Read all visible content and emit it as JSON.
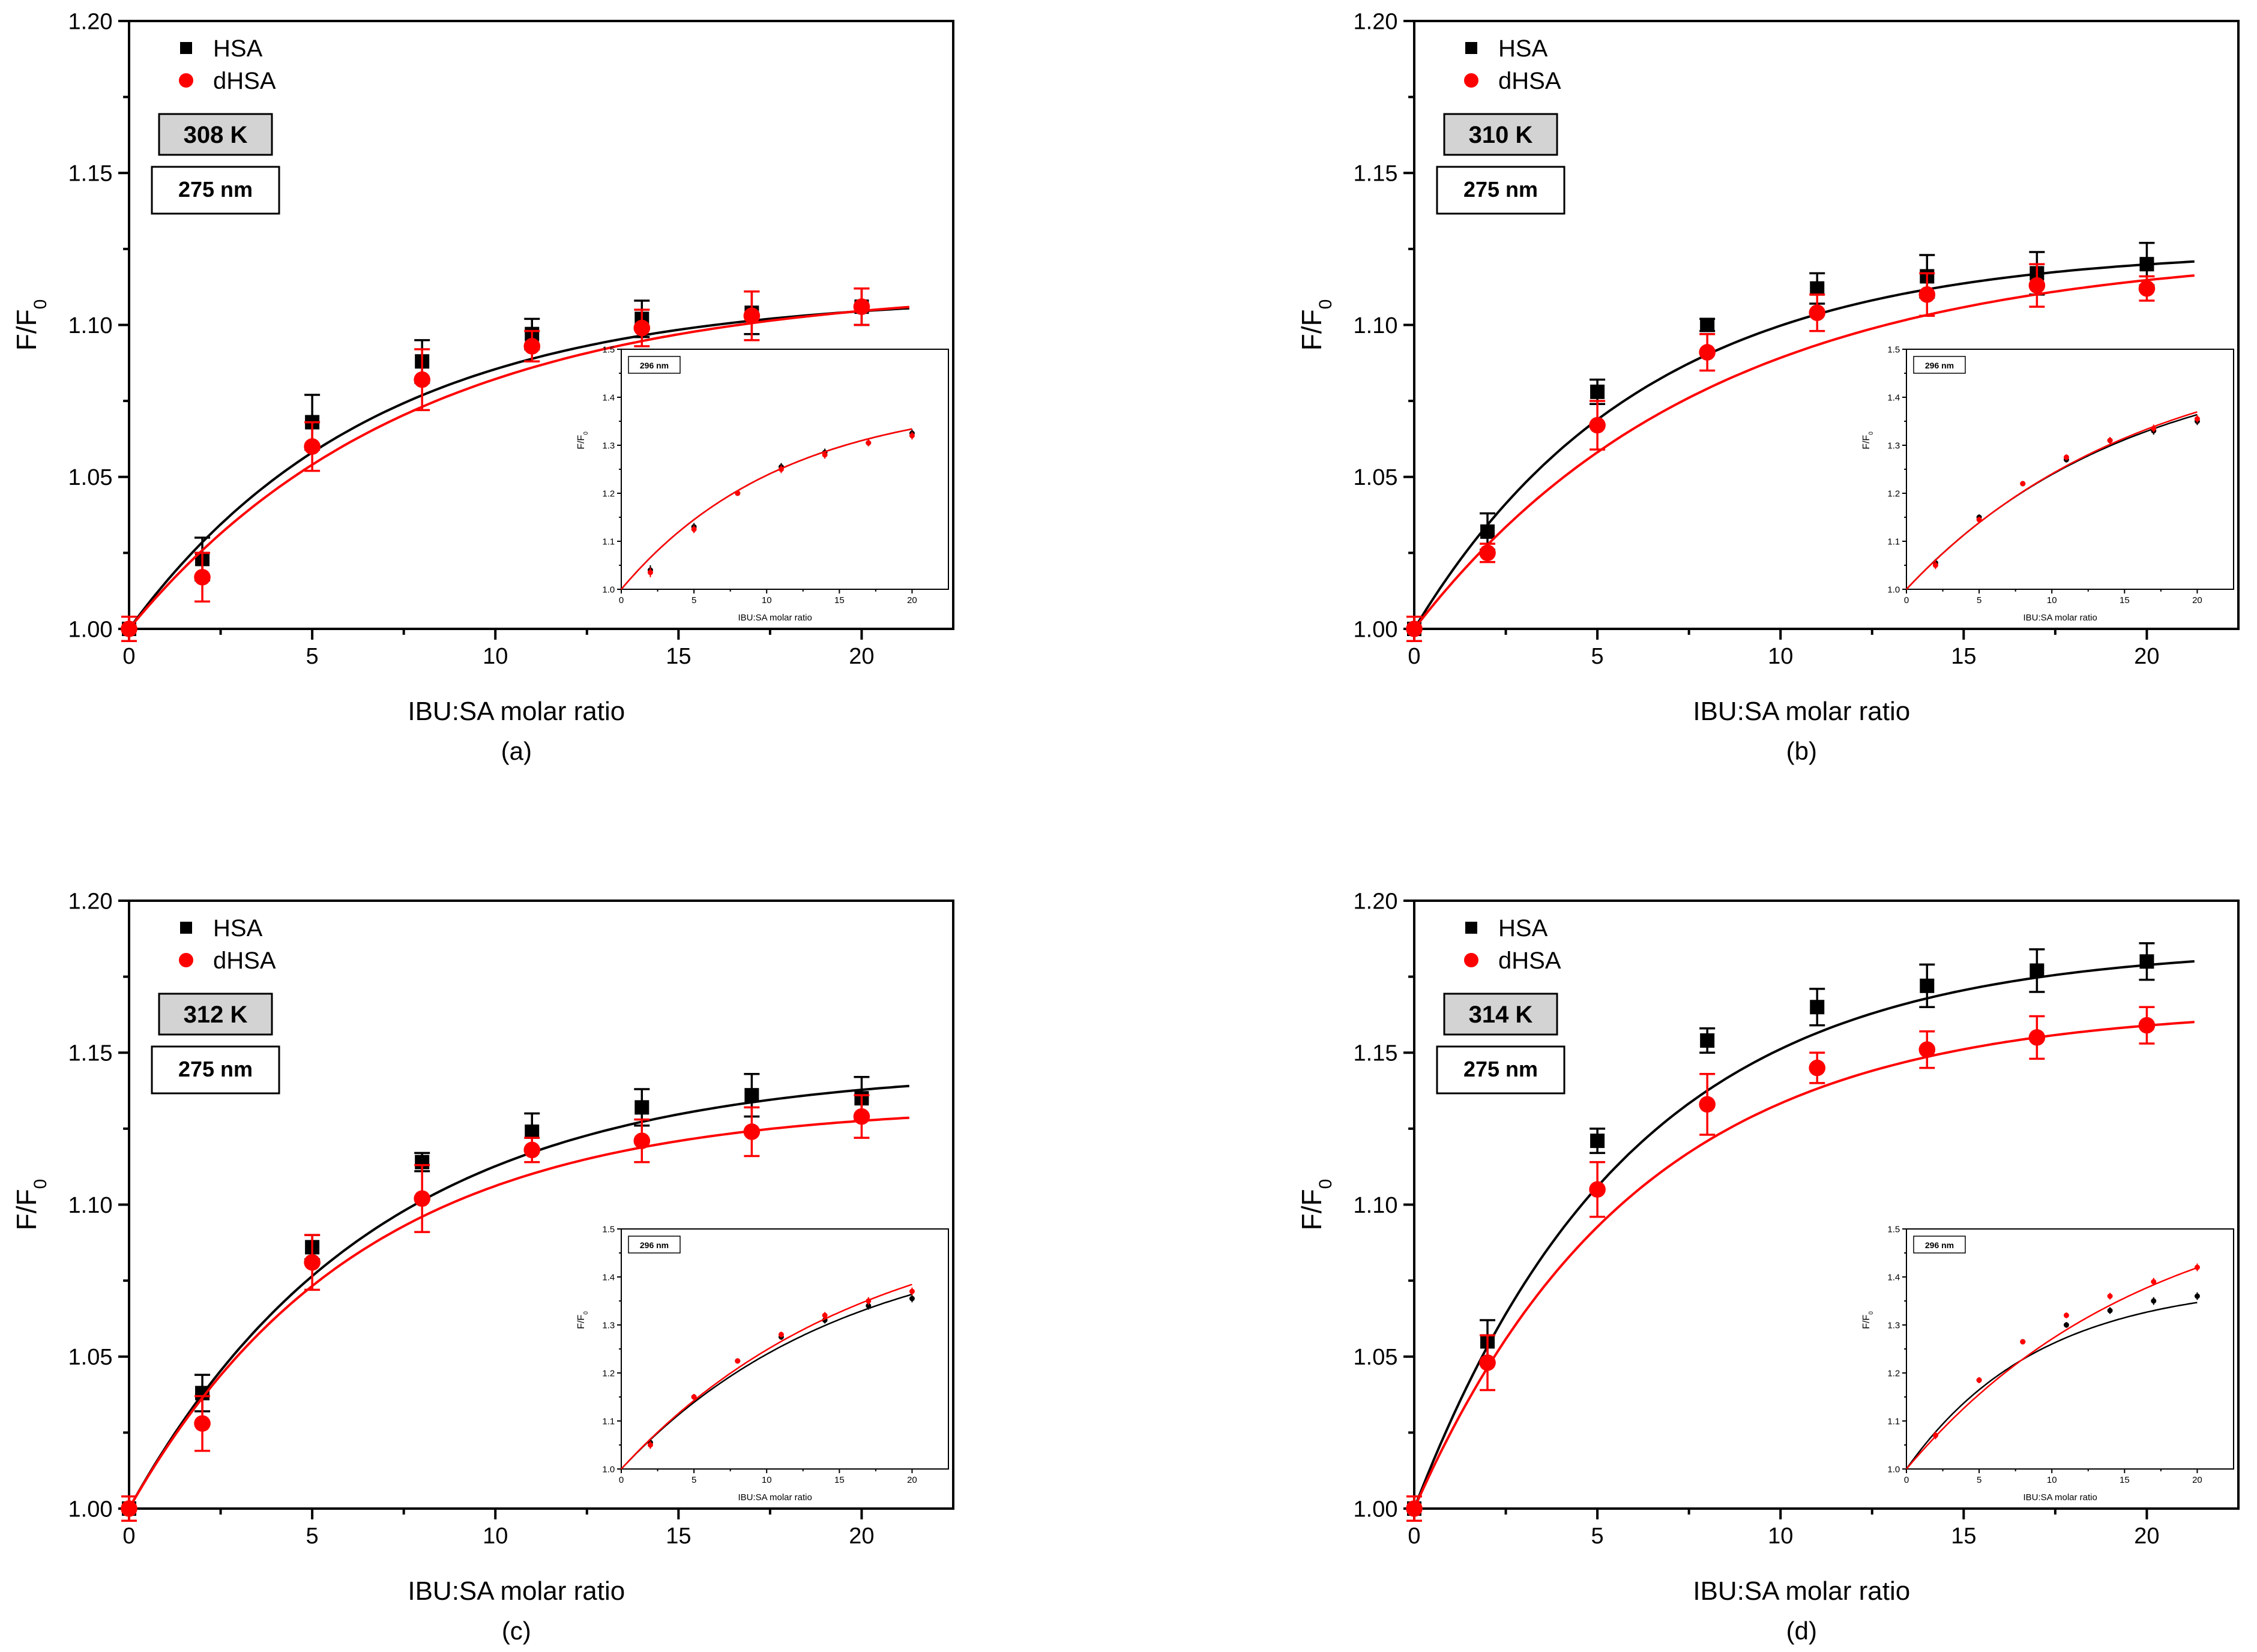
{
  "figure": {
    "panels": [
      {
        "label": "(a)",
        "temperature": "308 K",
        "wavelength": "275 nm",
        "inset_wavelength": "296 nm"
      },
      {
        "label": "(b)",
        "temperature": "310 K",
        "wavelength": "275 nm",
        "inset_wavelength": "296 nm"
      },
      {
        "label": "(c)",
        "temperature": "312 K",
        "wavelength": "275 nm",
        "inset_wavelength": "296 nm"
      },
      {
        "label": "(d)",
        "temperature": "314 K",
        "wavelength": "275 nm",
        "inset_wavelength": "296 nm"
      }
    ]
  },
  "chart_data": [
    {
      "type": "scatter",
      "panel": "(a)",
      "xlabel": "IBU:SA molar ratio",
      "ylabel": "F/F0",
      "xlim": [
        0,
        22.5
      ],
      "ylim": [
        1.0,
        1.2
      ],
      "xticks": [
        0,
        5,
        10,
        15,
        20
      ],
      "yticks": [
        1.0,
        1.05,
        1.1,
        1.15,
        1.2
      ],
      "xtick_labels": [
        "0",
        "5",
        "10",
        "15",
        "20"
      ],
      "ytick_labels": [
        "1.00",
        "1.05",
        "1.10",
        "1.15",
        "1.20"
      ],
      "legend": [
        "HSA",
        "dHSA"
      ],
      "legend_position": "top-left",
      "series": [
        {
          "name": "HSA",
          "color": "#000000",
          "marker": "square",
          "x": [
            0,
            2,
            5,
            8,
            11,
            14,
            17,
            20
          ],
          "y": [
            1.0,
            1.023,
            1.068,
            1.088,
            1.097,
            1.102,
            1.104,
            1.106
          ],
          "err": [
            0.004,
            0.007,
            0.009,
            0.007,
            0.005,
            0.006,
            0.007,
            0.006
          ],
          "fit": {
            "a": 0.11,
            "k": 0.15
          }
        },
        {
          "name": "dHSA",
          "color": "#ff0000",
          "marker": "circle",
          "x": [
            0,
            2,
            5,
            8,
            11,
            14,
            17,
            20
          ],
          "y": [
            1.0,
            1.017,
            1.06,
            1.082,
            1.093,
            1.099,
            1.103,
            1.106
          ],
          "err": [
            0.004,
            0.008,
            0.008,
            0.01,
            0.005,
            0.006,
            0.008,
            0.006
          ],
          "fit": {
            "a": 0.113,
            "k": 0.13
          }
        }
      ],
      "inset": {
        "xlabel": "IBU:SA molar ratio",
        "ylabel": "F/F0",
        "xlim": [
          0,
          22.5
        ],
        "ylim": [
          1.0,
          1.5
        ],
        "xticks": [
          0,
          5,
          10,
          15,
          20
        ],
        "yticks": [
          1.0,
          1.1,
          1.2,
          1.3,
          1.4,
          1.5
        ],
        "xtick_labels": [
          "0",
          "5",
          "10",
          "15",
          "20"
        ],
        "ytick_labels": [
          "1.0",
          "1.1",
          "1.2",
          "1.3",
          "1.4",
          "1.5"
        ],
        "series": [
          {
            "name": "HSA",
            "color": "#000000",
            "x": [
              2,
              5,
              8,
              11,
              14,
              17,
              20
            ],
            "y": [
              1.04,
              1.13,
              1.2,
              1.255,
              1.285,
              1.305,
              1.325
            ],
            "err": [
              0.01,
              0.008,
              0.005,
              0.008,
              0.008,
              0.007,
              0.008
            ],
            "fit": {
              "a": 0.4,
              "k": 0.09
            }
          },
          {
            "name": "dHSA",
            "color": "#ff0000",
            "x": [
              2,
              5,
              8,
              11,
              14,
              17,
              20
            ],
            "y": [
              1.035,
              1.125,
              1.2,
              1.25,
              1.28,
              1.305,
              1.32
            ],
            "err": [
              0.01,
              0.008,
              0.005,
              0.008,
              0.008,
              0.007,
              0.008
            ],
            "fit": {
              "a": 0.4,
              "k": 0.09
            }
          }
        ]
      }
    },
    {
      "type": "scatter",
      "panel": "(b)",
      "xlabel": "IBU:SA molar ratio",
      "ylabel": "F/F0",
      "xlim": [
        0,
        22.5
      ],
      "ylim": [
        1.0,
        1.2
      ],
      "xticks": [
        0,
        5,
        10,
        15,
        20
      ],
      "yticks": [
        1.0,
        1.05,
        1.1,
        1.15,
        1.2
      ],
      "xtick_labels": [
        "0",
        "5",
        "10",
        "15",
        "20"
      ],
      "ytick_labels": [
        "1.00",
        "1.05",
        "1.10",
        "1.15",
        "1.20"
      ],
      "legend": [
        "HSA",
        "dHSA"
      ],
      "legend_position": "top-left",
      "series": [
        {
          "name": "HSA",
          "color": "#000000",
          "marker": "square",
          "x": [
            0,
            2,
            5,
            8,
            11,
            14,
            17,
            20
          ],
          "y": [
            1.0,
            1.032,
            1.078,
            1.1,
            1.112,
            1.116,
            1.117,
            1.12
          ],
          "err": [
            0.004,
            0.006,
            0.004,
            0.002,
            0.005,
            0.007,
            0.007,
            0.007
          ],
          "fit": {
            "a": 0.125,
            "k": 0.16
          }
        },
        {
          "name": "dHSA",
          "color": "#ff0000",
          "marker": "circle",
          "x": [
            0,
            2,
            5,
            8,
            11,
            14,
            17,
            20
          ],
          "y": [
            1.0,
            1.025,
            1.067,
            1.091,
            1.104,
            1.11,
            1.113,
            1.112
          ],
          "err": [
            0.004,
            0.003,
            0.008,
            0.006,
            0.006,
            0.007,
            0.007,
            0.004
          ],
          "fit": {
            "a": 0.125,
            "k": 0.125
          }
        }
      ],
      "inset": {
        "xlabel": "IBU:SA molar ratio",
        "ylabel": "F/F0",
        "xlim": [
          0,
          22.5
        ],
        "ylim": [
          1.0,
          1.5
        ],
        "xticks": [
          0,
          5,
          10,
          15,
          20
        ],
        "yticks": [
          1.0,
          1.1,
          1.2,
          1.3,
          1.4,
          1.5
        ],
        "xtick_labels": [
          "0",
          "5",
          "10",
          "15",
          "20"
        ],
        "ytick_labels": [
          "1.0",
          "1.1",
          "1.2",
          "1.3",
          "1.4",
          "1.5"
        ],
        "series": [
          {
            "name": "HSA",
            "color": "#000000",
            "x": [
              2,
              5,
              8,
              11,
              14,
              17,
              20
            ],
            "y": [
              1.055,
              1.15,
              1.22,
              1.27,
              1.31,
              1.33,
              1.35
            ],
            "err": [
              0.008,
              0.006,
              0.005,
              0.006,
              0.007,
              0.008,
              0.008
            ],
            "fit": {
              "a": 0.5,
              "k": 0.065
            }
          },
          {
            "name": "dHSA",
            "color": "#ff0000",
            "x": [
              2,
              5,
              8,
              11,
              14,
              17,
              20
            ],
            "y": [
              1.05,
              1.145,
              1.22,
              1.275,
              1.31,
              1.335,
              1.355
            ],
            "err": [
              0.008,
              0.006,
              0.005,
              0.006,
              0.007,
              0.008,
              0.008
            ],
            "fit": {
              "a": 0.52,
              "k": 0.062
            }
          }
        ]
      }
    },
    {
      "type": "scatter",
      "panel": "(c)",
      "xlabel": "IBU:SA molar ratio",
      "ylabel": "F/F0",
      "xlim": [
        0,
        22.5
      ],
      "ylim": [
        1.0,
        1.2
      ],
      "xticks": [
        0,
        5,
        10,
        15,
        20
      ],
      "yticks": [
        1.0,
        1.05,
        1.1,
        1.15,
        1.2
      ],
      "xtick_labels": [
        "0",
        "5",
        "10",
        "15",
        "20"
      ],
      "ytick_labels": [
        "1.00",
        "1.05",
        "1.10",
        "1.15",
        "1.20"
      ],
      "legend": [
        "HSA",
        "dHSA"
      ],
      "legend_position": "top-left",
      "series": [
        {
          "name": "HSA",
          "color": "#000000",
          "marker": "square",
          "x": [
            0,
            2,
            5,
            8,
            11,
            14,
            17,
            20
          ],
          "y": [
            1.0,
            1.038,
            1.086,
            1.114,
            1.124,
            1.132,
            1.136,
            1.135
          ],
          "err": [
            0.004,
            0.006,
            0.004,
            0.003,
            0.006,
            0.006,
            0.007,
            0.007
          ],
          "fit": {
            "a": 0.145,
            "k": 0.15
          }
        },
        {
          "name": "dHSA",
          "color": "#ff0000",
          "marker": "circle",
          "x": [
            0,
            2,
            5,
            8,
            11,
            14,
            17,
            20
          ],
          "y": [
            1.0,
            1.028,
            1.081,
            1.102,
            1.118,
            1.121,
            1.124,
            1.129
          ],
          "err": [
            0.004,
            0.009,
            0.009,
            0.011,
            0.004,
            0.007,
            0.008,
            0.007
          ],
          "fit": {
            "a": 0.133,
            "k": 0.16
          }
        }
      ],
      "inset": {
        "xlabel": "IBU:SA molar ratio",
        "ylabel": "F/F0",
        "xlim": [
          0,
          22.5
        ],
        "ylim": [
          1.0,
          1.5
        ],
        "xticks": [
          0,
          5,
          10,
          15,
          20
        ],
        "yticks": [
          1.0,
          1.1,
          1.2,
          1.3,
          1.4,
          1.5
        ],
        "xtick_labels": [
          "0",
          "5",
          "10",
          "15",
          "20"
        ],
        "ytick_labels": [
          "1.0",
          "1.1",
          "1.2",
          "1.3",
          "1.4",
          "1.5"
        ],
        "series": [
          {
            "name": "HSA",
            "color": "#000000",
            "x": [
              2,
              5,
              8,
              11,
              14,
              17,
              20
            ],
            "y": [
              1.055,
              1.15,
              1.225,
              1.275,
              1.31,
              1.34,
              1.355
            ],
            "err": [
              0.008,
              0.006,
              0.005,
              0.006,
              0.007,
              0.008,
              0.008
            ],
            "fit": {
              "a": 0.5,
              "k": 0.065
            }
          },
          {
            "name": "dHSA",
            "color": "#ff0000",
            "x": [
              2,
              5,
              8,
              11,
              14,
              17,
              20
            ],
            "y": [
              1.05,
              1.15,
              1.225,
              1.28,
              1.32,
              1.35,
              1.37
            ],
            "err": [
              0.008,
              0.006,
              0.005,
              0.006,
              0.007,
              0.008,
              0.008
            ],
            "fit": {
              "a": 0.55,
              "k": 0.06
            }
          }
        ]
      }
    },
    {
      "type": "scatter",
      "panel": "(d)",
      "xlabel": "IBU:SA molar ratio",
      "ylabel": "F/F0",
      "xlim": [
        0,
        22.5
      ],
      "ylim": [
        1.0,
        1.2
      ],
      "xticks": [
        0,
        5,
        10,
        15,
        20
      ],
      "yticks": [
        1.0,
        1.05,
        1.1,
        1.15,
        1.2
      ],
      "xtick_labels": [
        "0",
        "5",
        "10",
        "15",
        "20"
      ],
      "ytick_labels": [
        "1.00",
        "1.05",
        "1.10",
        "1.15",
        "1.20"
      ],
      "legend": [
        "HSA",
        "dHSA"
      ],
      "legend_position": "top-left",
      "series": [
        {
          "name": "HSA",
          "color": "#000000",
          "marker": "square",
          "x": [
            0,
            2,
            5,
            8,
            11,
            14,
            17,
            20
          ],
          "y": [
            1.0,
            1.055,
            1.121,
            1.154,
            1.165,
            1.172,
            1.177,
            1.18
          ],
          "err": [
            0.004,
            0.007,
            0.004,
            0.004,
            0.006,
            0.007,
            0.007,
            0.006
          ],
          "fit": {
            "a": 0.185,
            "k": 0.17
          }
        },
        {
          "name": "dHSA",
          "color": "#ff0000",
          "marker": "circle",
          "x": [
            0,
            2,
            5,
            8,
            11,
            14,
            17,
            20
          ],
          "y": [
            1.0,
            1.048,
            1.105,
            1.133,
            1.145,
            1.151,
            1.155,
            1.159
          ],
          "err": [
            0.004,
            0.009,
            0.009,
            0.01,
            0.005,
            0.006,
            0.007,
            0.006
          ],
          "fit": {
            "a": 0.165,
            "k": 0.165
          }
        }
      ],
      "inset": {
        "xlabel": "IBU:SA molar ratio",
        "ylabel": "F/F0",
        "xlim": [
          0,
          22.5
        ],
        "ylim": [
          1.0,
          1.5
        ],
        "xticks": [
          0,
          5,
          10,
          15,
          20
        ],
        "yticks": [
          1.0,
          1.1,
          1.2,
          1.3,
          1.4,
          1.5
        ],
        "xtick_labels": [
          "0",
          "5",
          "10",
          "15",
          "20"
        ],
        "ytick_labels": [
          "1.0",
          "1.1",
          "1.2",
          "1.3",
          "1.4",
          "1.5"
        ],
        "series": [
          {
            "name": "HSA",
            "color": "#000000",
            "x": [
              2,
              5,
              8,
              11,
              14,
              17,
              20
            ],
            "y": [
              1.07,
              1.185,
              1.265,
              1.3,
              1.33,
              1.35,
              1.36
            ],
            "err": [
              0.008,
              0.006,
              0.005,
              0.006,
              0.007,
              0.008,
              0.008
            ],
            "fit": {
              "a": 0.39,
              "k": 0.11
            }
          },
          {
            "name": "dHSA",
            "color": "#ff0000",
            "x": [
              2,
              5,
              8,
              11,
              14,
              17,
              20
            ],
            "y": [
              1.07,
              1.185,
              1.265,
              1.32,
              1.36,
              1.39,
              1.42
            ],
            "err": [
              0.008,
              0.006,
              0.005,
              0.006,
              0.007,
              0.008,
              0.008
            ],
            "fit": {
              "a": 0.6,
              "k": 0.06
            }
          }
        ]
      }
    }
  ]
}
